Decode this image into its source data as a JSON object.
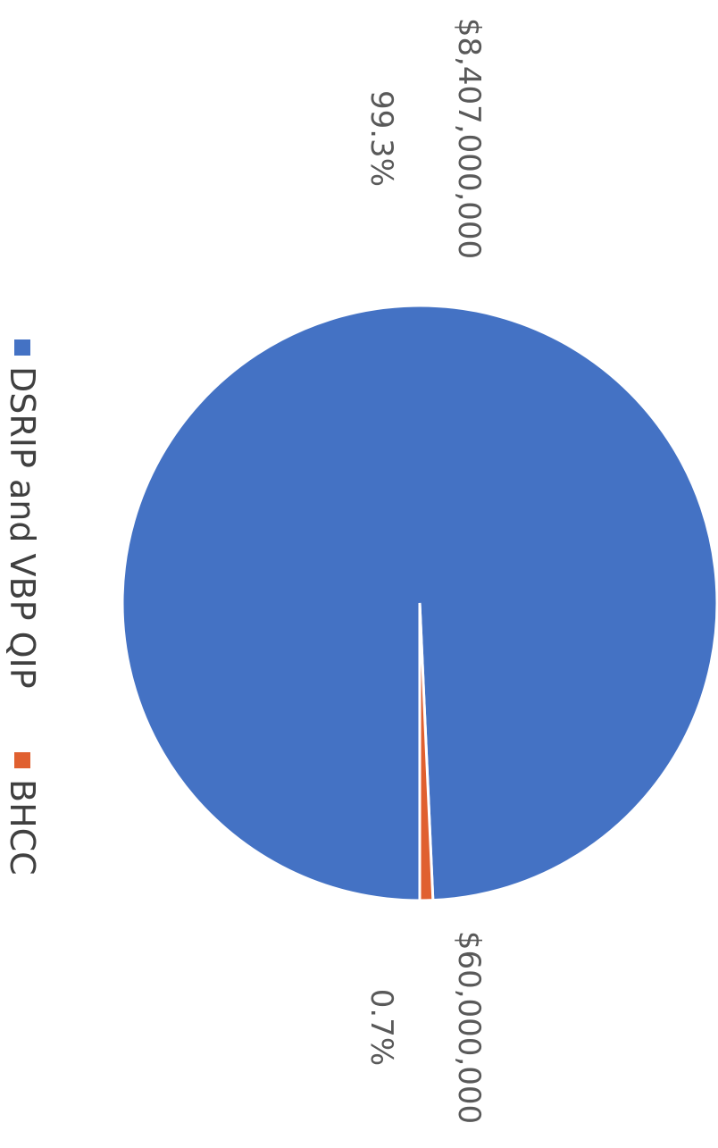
{
  "chart_data": {
    "type": "pie",
    "categories": [
      "DSRIP and VBP QIP",
      "BHCC"
    ],
    "values": [
      8407000000,
      60000000
    ],
    "value_labels": [
      "$8,407,000,000",
      "$60,000,000"
    ],
    "percent_labels": [
      "99.3%",
      "0.7%"
    ],
    "colors": [
      "#4472c4",
      "#e06030"
    ],
    "legend": {
      "placement": "bottom",
      "entries": [
        "DSRIP and VBP QIP",
        "BHCC"
      ]
    },
    "orientation": "rotated-90-clockwise"
  }
}
